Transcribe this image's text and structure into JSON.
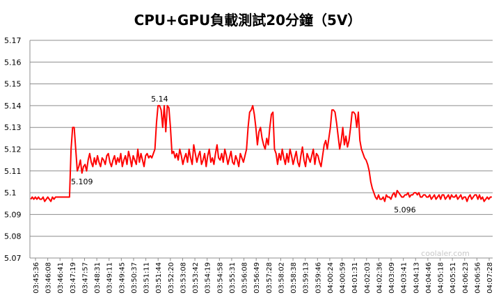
{
  "chart_data": {
    "type": "line",
    "title": "CPU+GPU負載測試20分鐘（5V）",
    "xlabel": "",
    "ylabel": "",
    "ylim": [
      5.07,
      5.17
    ],
    "yticks": [
      "5.07",
      "5.08",
      "5.09",
      "5.1",
      "5.11",
      "5.12",
      "5.13",
      "5.14",
      "5.15",
      "5.16",
      "5.17"
    ],
    "gridlines": "horizontal",
    "legend": "none",
    "line_color": "#ff0000",
    "x_tick_labels": [
      "03:45:36",
      "03:46:08",
      "03:46:41",
      "03:47:19",
      "03:47:57",
      "03:48:31",
      "03:49:11",
      "03:49:45",
      "03:50:37",
      "03:51:11",
      "03:51:44",
      "03:52:20",
      "03:53:08",
      "03:53:42",
      "03:54:19",
      "03:54:58",
      "03:55:31",
      "03:56:08",
      "03:56:49",
      "03:57:28",
      "03:58:02",
      "03:58:38",
      "03:59:13",
      "03:59:46",
      "04:00:24",
      "04:00:59",
      "04:01:31",
      "04:02:03",
      "04:02:36",
      "04:03:09",
      "04:03:41",
      "04:04:13",
      "04:04:46",
      "04:05:18",
      "04:05:51",
      "04:06:23",
      "04:06:56",
      "04:07:28"
    ],
    "series": [
      {
        "values": [
          5.097,
          5.098,
          5.097,
          5.098,
          5.097,
          5.098,
          5.097,
          5.097,
          5.098,
          5.096,
          5.097,
          5.098,
          5.097,
          5.096,
          5.098,
          5.097,
          5.098,
          5.098,
          5.098,
          5.098,
          5.098,
          5.098,
          5.098,
          5.098,
          5.098,
          5.098,
          5.12,
          5.13,
          5.13,
          5.12,
          5.11,
          5.112,
          5.115,
          5.109,
          5.112,
          5.113,
          5.11,
          5.115,
          5.118,
          5.114,
          5.112,
          5.116,
          5.113,
          5.117,
          5.114,
          5.112,
          5.116,
          5.115,
          5.113,
          5.117,
          5.118,
          5.114,
          5.112,
          5.115,
          5.117,
          5.113,
          5.116,
          5.114,
          5.118,
          5.112,
          5.115,
          5.117,
          5.113,
          5.119,
          5.116,
          5.112,
          5.117,
          5.115,
          5.113,
          5.12,
          5.114,
          5.118,
          5.115,
          5.112,
          5.117,
          5.118,
          5.116,
          5.117,
          5.116,
          5.118,
          5.12,
          5.132,
          5.14,
          5.14,
          5.138,
          5.13,
          5.14,
          5.128,
          5.14,
          5.139,
          5.13,
          5.118,
          5.119,
          5.116,
          5.118,
          5.115,
          5.12,
          5.117,
          5.113,
          5.116,
          5.118,
          5.114,
          5.12,
          5.116,
          5.113,
          5.122,
          5.118,
          5.114,
          5.117,
          5.119,
          5.113,
          5.115,
          5.118,
          5.112,
          5.117,
          5.12,
          5.114,
          5.116,
          5.113,
          5.118,
          5.122,
          5.116,
          5.115,
          5.118,
          5.114,
          5.12,
          5.117,
          5.113,
          5.116,
          5.119,
          5.114,
          5.113,
          5.117,
          5.115,
          5.112,
          5.118,
          5.116,
          5.114,
          5.117,
          5.12,
          5.13,
          5.137,
          5.138,
          5.14,
          5.136,
          5.13,
          5.122,
          5.128,
          5.13,
          5.125,
          5.122,
          5.12,
          5.125,
          5.122,
          5.13,
          5.136,
          5.137,
          5.12,
          5.118,
          5.113,
          5.118,
          5.115,
          5.12,
          5.116,
          5.113,
          5.118,
          5.114,
          5.12,
          5.117,
          5.113,
          5.116,
          5.119,
          5.114,
          5.112,
          5.117,
          5.121,
          5.115,
          5.112,
          5.118,
          5.116,
          5.114,
          5.117,
          5.12,
          5.113,
          5.118,
          5.117,
          5.114,
          5.112,
          5.117,
          5.122,
          5.124,
          5.12,
          5.125,
          5.13,
          5.138,
          5.138,
          5.137,
          5.132,
          5.126,
          5.12,
          5.124,
          5.13,
          5.122,
          5.126,
          5.121,
          5.124,
          5.13,
          5.137,
          5.137,
          5.136,
          5.13,
          5.137,
          5.124,
          5.12,
          5.118,
          5.116,
          5.115,
          5.113,
          5.11,
          5.105,
          5.102,
          5.1,
          5.098,
          5.097,
          5.099,
          5.097,
          5.097,
          5.098,
          5.096,
          5.099,
          5.098,
          5.098,
          5.097,
          5.099,
          5.1,
          5.098,
          5.101,
          5.1,
          5.099,
          5.098,
          5.098,
          5.099,
          5.099,
          5.1,
          5.098,
          5.099,
          5.099,
          5.1,
          5.1,
          5.099,
          5.1,
          5.098,
          5.098,
          5.099,
          5.099,
          5.098,
          5.098,
          5.099,
          5.097,
          5.098,
          5.099,
          5.097,
          5.098,
          5.099,
          5.097,
          5.099,
          5.099,
          5.097,
          5.098,
          5.099,
          5.097,
          5.099,
          5.098,
          5.098,
          5.099,
          5.097,
          5.098,
          5.099,
          5.097,
          5.098,
          5.098,
          5.096,
          5.098,
          5.099,
          5.097,
          5.098,
          5.099,
          5.099,
          5.097,
          5.099,
          5.097,
          5.098,
          5.096,
          5.097,
          5.098,
          5.097,
          5.098,
          5.098
        ]
      }
    ],
    "annotations": [
      {
        "text": "5.14",
        "at_index": 83,
        "value": 5.14
      },
      {
        "text": "5.109",
        "at_index": 33,
        "value": 5.109
      },
      {
        "text": "5.096",
        "at_index": 241,
        "value": 5.096
      }
    ]
  },
  "watermark": "coolaler.com"
}
